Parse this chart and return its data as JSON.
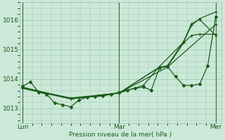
{
  "bg_color": "#cce8d8",
  "grid_color": "#99ccb0",
  "line_color": "#1a5c1a",
  "marker_color": "#1a5c1a",
  "xlabel": "Pression niveau de la mer( hPa )",
  "xlabel_color": "#1a5c1a",
  "tick_color": "#1a5c1a",
  "ylim": [
    1012.5,
    1016.6
  ],
  "yticks": [
    1013,
    1014,
    1015,
    1016
  ],
  "xlim": [
    -0.03,
    2.06
  ],
  "day_lines": [
    0.0,
    1.0,
    2.0
  ],
  "day_labels": [
    "Lun",
    "Mar",
    "Mer"
  ],
  "series1": {
    "points": [
      [
        0.0,
        1013.75
      ],
      [
        0.083,
        1013.9
      ],
      [
        0.167,
        1013.55
      ],
      [
        0.25,
        1013.48
      ],
      [
        0.333,
        1013.18
      ],
      [
        0.417,
        1013.12
      ],
      [
        0.5,
        1013.05
      ],
      [
        0.583,
        1013.28
      ],
      [
        0.667,
        1013.38
      ],
      [
        0.75,
        1013.4
      ],
      [
        0.833,
        1013.42
      ],
      [
        0.917,
        1013.48
      ],
      [
        1.0,
        1013.55
      ],
      [
        1.083,
        1013.62
      ],
      [
        1.167,
        1013.68
      ],
      [
        1.25,
        1013.72
      ],
      [
        1.333,
        1013.62
      ],
      [
        1.417,
        1014.38
      ],
      [
        1.5,
        1014.42
      ],
      [
        1.583,
        1014.08
      ],
      [
        1.667,
        1013.78
      ],
      [
        1.75,
        1013.78
      ],
      [
        1.833,
        1013.82
      ],
      [
        1.917,
        1014.45
      ],
      [
        2.0,
        1016.12
      ]
    ],
    "marker": "D",
    "ms": 2.2,
    "lw": 0.9
  },
  "series2": {
    "points": [
      [
        0.0,
        1013.68
      ],
      [
        0.5,
        1013.32
      ],
      [
        1.0,
        1013.52
      ],
      [
        1.5,
        1014.4
      ],
      [
        2.0,
        1015.85
      ]
    ],
    "marker": "+",
    "ms": 3.5,
    "lw": 0.9
  },
  "series3": {
    "points": [
      [
        0.0,
        1013.7
      ],
      [
        0.5,
        1013.35
      ],
      [
        1.0,
        1013.52
      ],
      [
        1.25,
        1013.78
      ],
      [
        1.417,
        1014.42
      ],
      [
        1.667,
        1015.25
      ],
      [
        1.75,
        1015.82
      ],
      [
        1.833,
        1016.05
      ],
      [
        2.0,
        1016.28
      ]
    ],
    "marker": "+",
    "ms": 3.5,
    "lw": 0.9
  },
  "series4": {
    "points": [
      [
        0.0,
        1013.71
      ],
      [
        0.5,
        1013.33
      ],
      [
        1.0,
        1013.52
      ],
      [
        1.417,
        1014.4
      ],
      [
        1.5,
        1014.42
      ],
      [
        1.667,
        1015.22
      ],
      [
        1.75,
        1015.48
      ],
      [
        1.833,
        1015.52
      ],
      [
        2.0,
        1015.52
      ]
    ],
    "marker": "+",
    "ms": 3.5,
    "lw": 0.9
  },
  "series5": {
    "points": [
      [
        0.0,
        1013.72
      ],
      [
        0.5,
        1013.32
      ],
      [
        1.0,
        1013.52
      ],
      [
        1.417,
        1014.4
      ],
      [
        1.5,
        1014.45
      ],
      [
        1.667,
        1015.27
      ],
      [
        1.75,
        1015.88
      ],
      [
        1.833,
        1016.02
      ],
      [
        2.0,
        1015.48
      ]
    ],
    "marker": "+",
    "ms": 3.5,
    "lw": 0.9
  }
}
